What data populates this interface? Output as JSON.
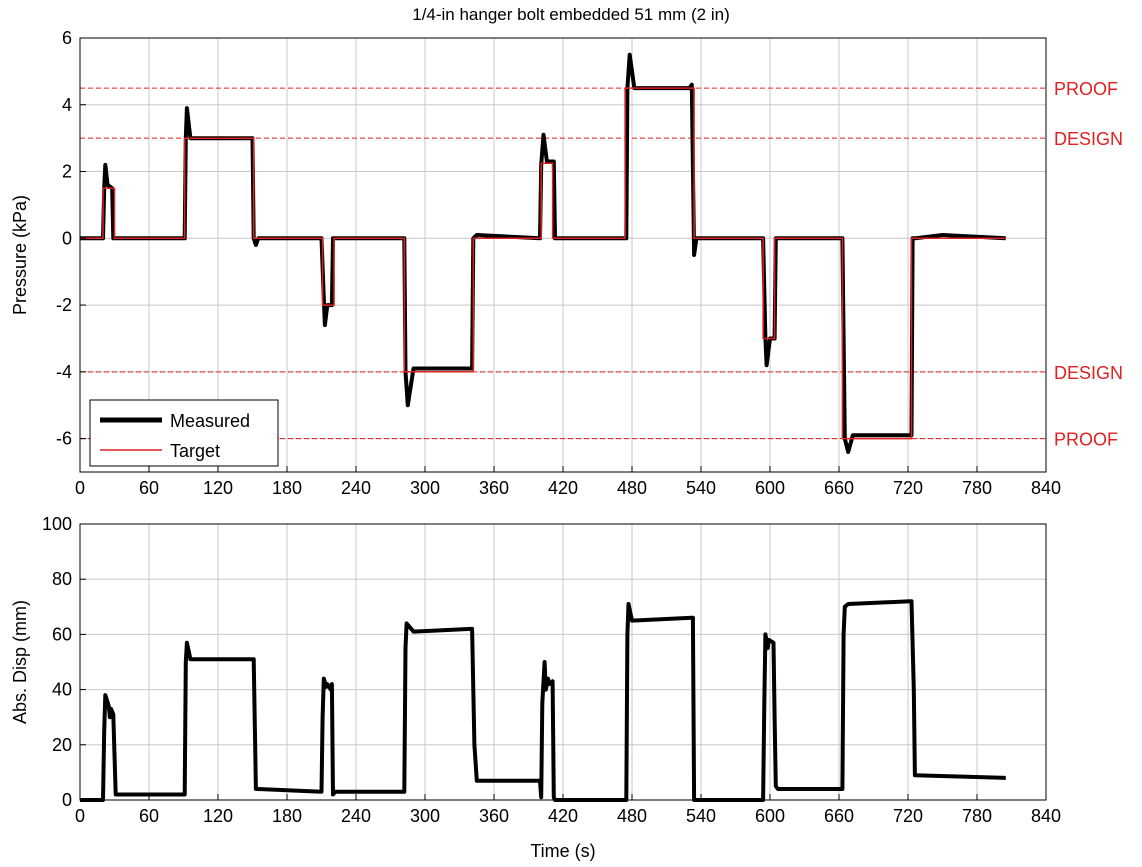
{
  "title": "1/4-in hanger bolt embedded 51 mm (2 in)",
  "colors": {
    "measured": "#000000",
    "target": "#e02020",
    "reference": "#e02020",
    "grid": "#c8c8c8"
  },
  "chart_data": [
    {
      "type": "line",
      "ylabel": "Pressure (kPa)",
      "xlabel": "",
      "xlim": [
        0,
        840
      ],
      "ylim": [
        -7,
        6
      ],
      "xticks": [
        0,
        60,
        120,
        180,
        240,
        300,
        360,
        420,
        480,
        540,
        600,
        660,
        720,
        780,
        840
      ],
      "yticks": [
        -6,
        -4,
        -2,
        0,
        2,
        4,
        6
      ],
      "grid": true,
      "legend": {
        "position": "bottom-left",
        "entries": [
          "Measured",
          "Target"
        ]
      },
      "reference_lines": [
        {
          "y": 4.5,
          "label": "PROOF"
        },
        {
          "y": 3.0,
          "label": "DESIGN"
        },
        {
          "y": -4.0,
          "label": "DESIGN"
        },
        {
          "y": -6.0,
          "label": "PROOF"
        }
      ],
      "series": [
        {
          "name": "Measured",
          "x": [
            0,
            20,
            21,
            22,
            24,
            28,
            29,
            31,
            91,
            92,
            93,
            96,
            150,
            151,
            153,
            155,
            210,
            212,
            213,
            215,
            219,
            220,
            223,
            282,
            283,
            285,
            290,
            341,
            342,
            345,
            400,
            401,
            403,
            406,
            412,
            413,
            416,
            475,
            476,
            478,
            482,
            530,
            532,
            534,
            536,
            540,
            594,
            596,
            597,
            600,
            604,
            605,
            608,
            663,
            665,
            668,
            672,
            723,
            724,
            726,
            750,
            805
          ],
          "y": [
            0,
            0,
            1.5,
            2.2,
            1.6,
            1.5,
            0,
            0,
            0,
            3.0,
            3.9,
            3.0,
            3.0,
            0,
            -0.2,
            0,
            0,
            -1.8,
            -2.6,
            -2.0,
            -2.0,
            0,
            0,
            0,
            -4.0,
            -5.0,
            -3.9,
            -3.9,
            0,
            0.1,
            0,
            2.2,
            3.1,
            2.3,
            2.3,
            0,
            0,
            0,
            4.5,
            5.5,
            4.5,
            4.5,
            4.6,
            -0.5,
            0,
            0,
            0,
            -3.0,
            -3.8,
            -3.0,
            -3.0,
            0,
            0,
            0,
            -6.0,
            -6.4,
            -5.9,
            -5.9,
            0,
            0,
            0.1,
            0
          ]
        },
        {
          "name": "Target",
          "x": [
            0,
            20,
            20,
            30,
            30,
            91,
            91,
            151,
            151,
            211,
            211,
            221,
            221,
            282,
            282,
            342,
            342,
            401,
            401,
            411,
            411,
            474,
            474,
            534,
            534,
            594,
            594,
            604,
            604,
            663,
            663,
            723,
            723,
            805
          ],
          "y": [
            0,
            0,
            1.5,
            1.5,
            0,
            0,
            3.0,
            3.0,
            0,
            0,
            -2.0,
            -2.0,
            0,
            0,
            -4.0,
            -4.0,
            0,
            0,
            2.25,
            2.25,
            0,
            0,
            4.5,
            4.5,
            0,
            0,
            -3.0,
            -3.0,
            0,
            0,
            -6.0,
            -6.0,
            0,
            0
          ]
        }
      ]
    },
    {
      "type": "line",
      "ylabel": "Abs. Disp (mm)",
      "xlabel": "Time (s)",
      "xlim": [
        0,
        840
      ],
      "ylim": [
        0,
        100
      ],
      "xticks": [
        0,
        60,
        120,
        180,
        240,
        300,
        360,
        420,
        480,
        540,
        600,
        660,
        720,
        780,
        840
      ],
      "yticks": [
        0,
        20,
        40,
        60,
        80,
        100
      ],
      "grid": true,
      "series": [
        {
          "name": "",
          "x": [
            0,
            20,
            21,
            22,
            25,
            26,
            27,
            29,
            31,
            32,
            91,
            92,
            93,
            96,
            150,
            151,
            153,
            155,
            210,
            211,
            212,
            214,
            215,
            218,
            219,
            220,
            222,
            282,
            283,
            284,
            290,
            340,
            341,
            343,
            345,
            400,
            401,
            402,
            404,
            405,
            407,
            408,
            411,
            412,
            413,
            475,
            476,
            477,
            480,
            532,
            533,
            534,
            536,
            594,
            595,
            596,
            598,
            599,
            603,
            604,
            605,
            607,
            663,
            664,
            665,
            668,
            722,
            723,
            725,
            726,
            805
          ],
          "y": [
            0,
            0,
            25,
            38,
            34,
            30,
            33,
            31,
            2,
            2,
            2,
            50,
            57,
            51,
            51,
            51,
            4,
            4,
            3,
            30,
            44,
            41,
            42,
            40,
            42,
            2,
            3,
            3,
            55,
            64,
            61,
            62,
            62,
            20,
            7,
            7,
            1,
            35,
            50,
            40,
            44,
            42,
            43,
            1,
            0,
            0,
            60,
            71,
            65,
            66,
            66,
            0,
            0,
            0,
            35,
            60,
            55,
            58,
            57,
            30,
            5,
            4,
            4,
            60,
            70,
            71,
            72,
            72,
            40,
            9,
            8
          ]
        }
      ]
    }
  ]
}
